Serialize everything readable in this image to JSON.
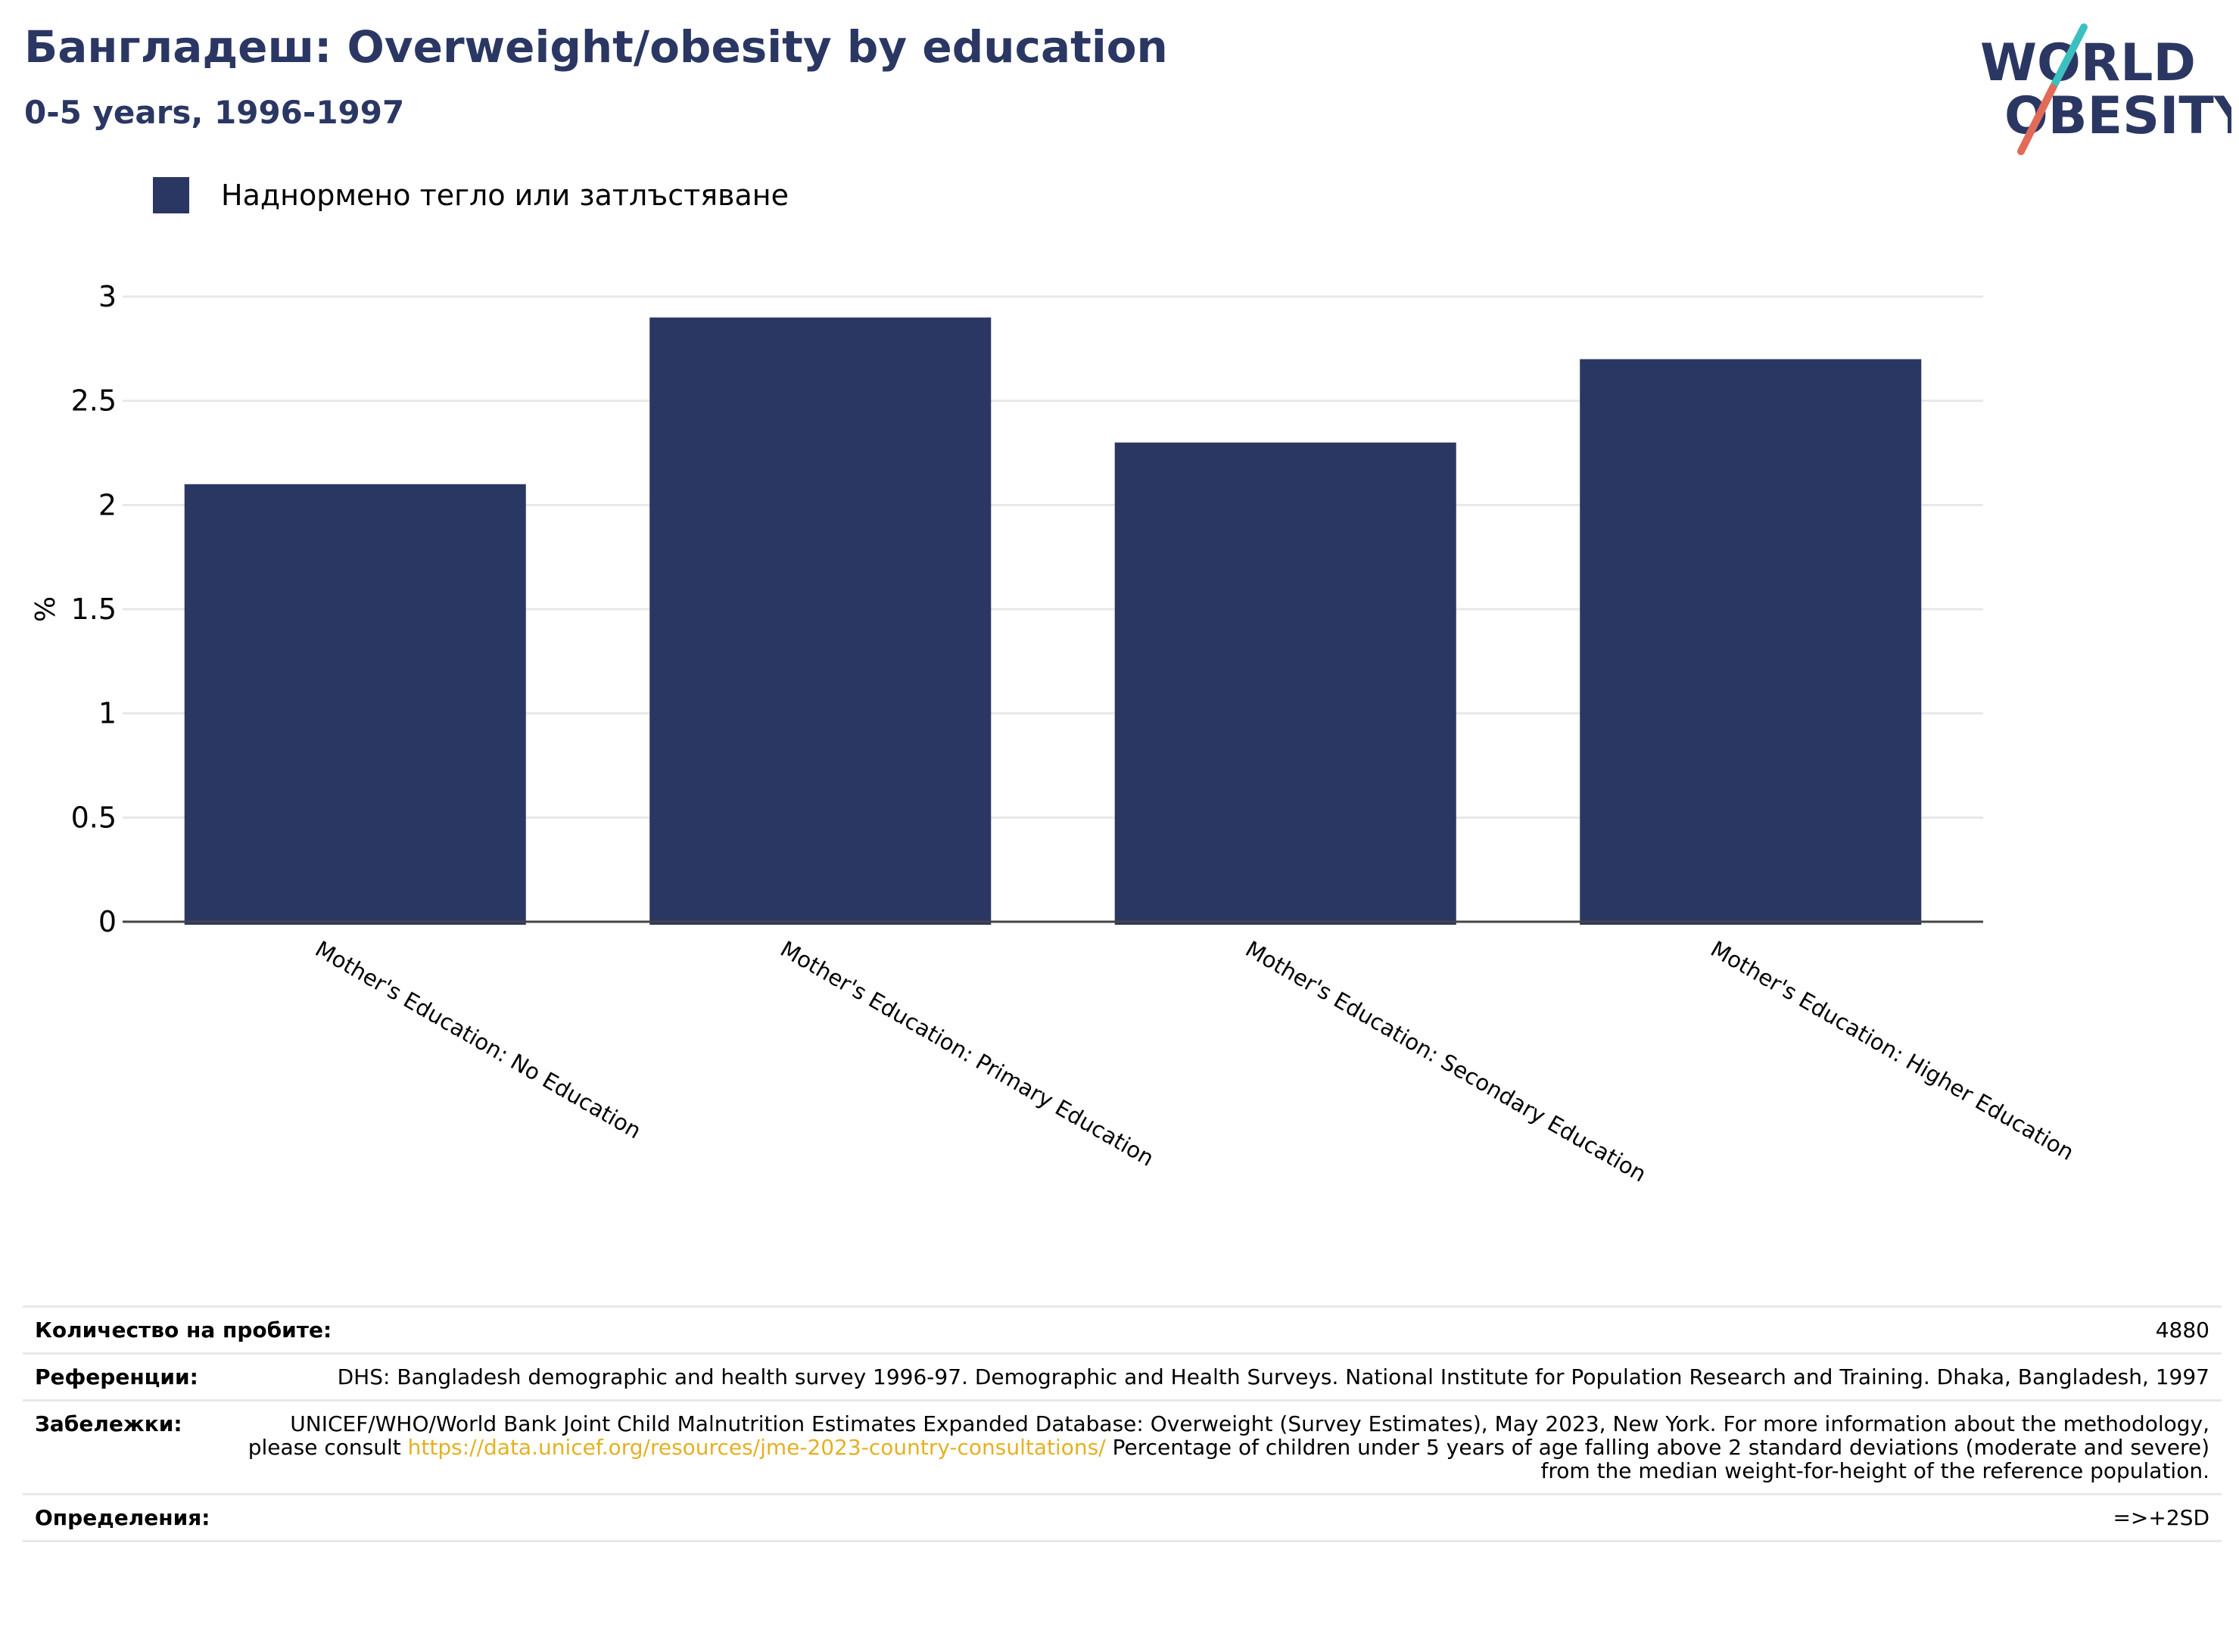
{
  "header": {
    "title": "Бангладеш: Overweight/obesity by education",
    "subtitle": "0-5 years, 1996-1997"
  },
  "logo": {
    "line1": "WORLD",
    "line2": "OBESITY",
    "colors": {
      "text": "#2b3763",
      "slash_top": "#3bbfbf",
      "slash_bottom": "#e26a58"
    }
  },
  "chart_data": {
    "type": "bar",
    "categories": [
      "Mother's Education: No Education",
      "Mother's Education: Primary Education",
      "Mother's Education: Secondary Education",
      "Mother's Education: Higher Education"
    ],
    "series": [
      {
        "name": "Наднормено тегло или затлъстяване",
        "values": [
          2.1,
          2.9,
          2.3,
          2.7
        ],
        "color": "#2b3763"
      }
    ],
    "ylabel": "%",
    "ylim": [
      0,
      3
    ],
    "yticks": [
      "0",
      "0.5",
      "1",
      "1.5",
      "2",
      "2.5",
      "3"
    ],
    "ytick_values": [
      0,
      0.5,
      1,
      1.5,
      2,
      2.5,
      3
    ],
    "grid": true,
    "legend_position": "top-left"
  },
  "footer": {
    "rows": [
      {
        "label": "Количество на пробите:",
        "value": "4880"
      },
      {
        "label": "Референции:",
        "value": "DHS: Bangladesh demographic and health survey 1996-97. Demographic and Health Surveys. National Institute for Population Research and Training. Dhaka, Bangladesh, 1997"
      },
      {
        "label": "Забележки:",
        "value_before": "UNICEF/WHO/World Bank Joint Child Malnutrition Estimates Expanded Database: Overweight (Survey Estimates), May 2023, New York. For more information about the methodology, please consult ",
        "link": "https://data.unicef.org/resources/jme-2023-country-consultations/",
        "value_after": " Percentage of children under 5 years of age falling above 2 standard deviations (moderate and severe) from the median weight-for-height of the reference population."
      },
      {
        "label": "Определения:",
        "value": "=>+2SD"
      }
    ]
  }
}
